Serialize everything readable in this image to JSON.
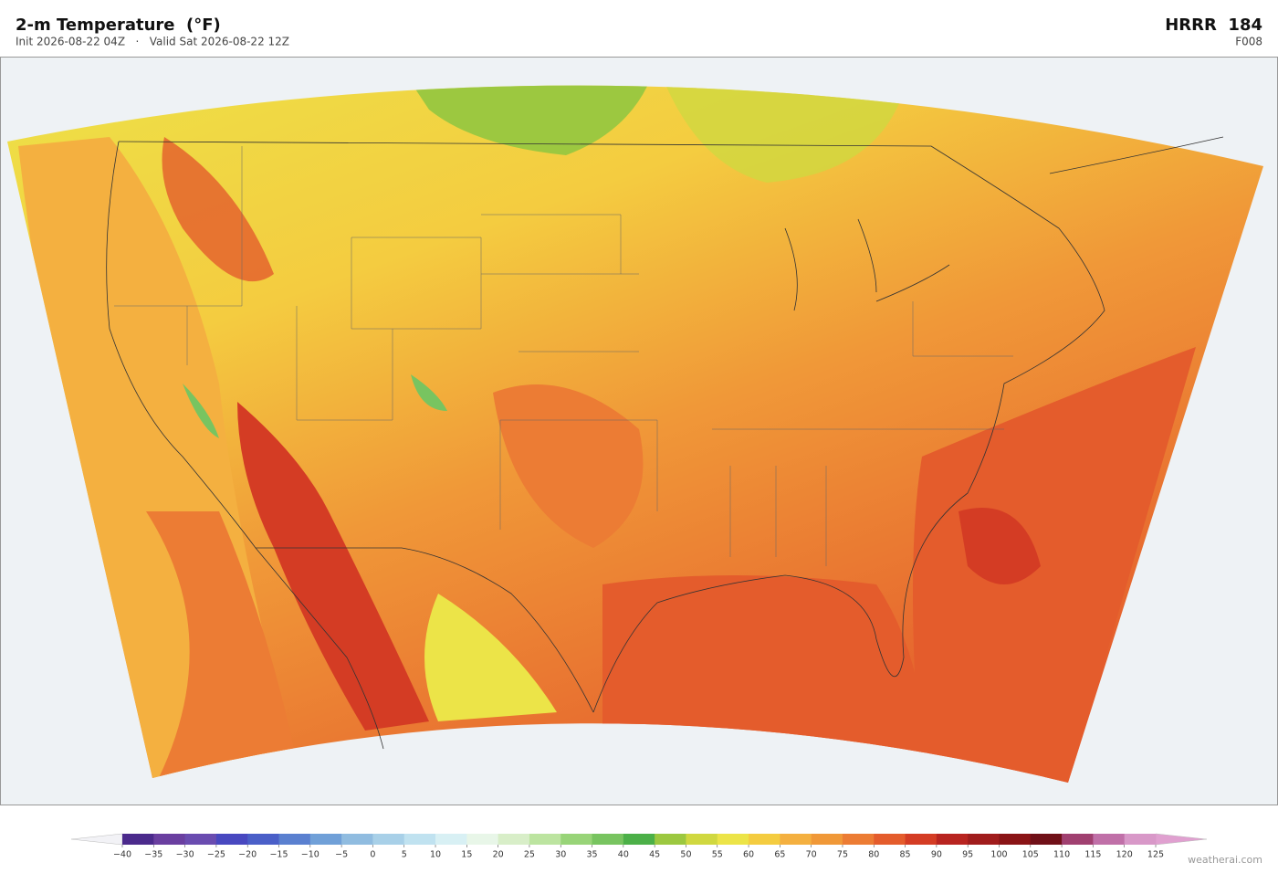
{
  "header": {
    "title": "2-m Temperature  (°F)",
    "subtitle": "Init 2026-08-22 04Z   ·   Valid Sat 2026-08-22 12Z",
    "model": "HRRR  184",
    "forecast_hour": "F008"
  },
  "colorbar": {
    "labels": [
      "−40",
      "−35",
      "−30",
      "−25",
      "−20",
      "−15",
      "−10",
      "−5",
      "0",
      "5",
      "10",
      "15",
      "20",
      "25",
      "30",
      "35",
      "40",
      "45",
      "50",
      "55",
      "60",
      "65",
      "70",
      "75",
      "80",
      "85",
      "90",
      "95",
      "100",
      "105",
      "110",
      "115",
      "120",
      "125"
    ],
    "colors": [
      "#4b2a8c",
      "#6a3fa0",
      "#6a4cb0",
      "#4848c0",
      "#4a5fc8",
      "#5a80d0",
      "#70a0d8",
      "#90bce0",
      "#a8d0e8",
      "#c0e2f0",
      "#d8f0f4",
      "#e8f6e8",
      "#d8eec8",
      "#bce4a0",
      "#98d478",
      "#78c460",
      "#4cb048",
      "#9cc840",
      "#d0d840",
      "#ece448",
      "#f4cc40",
      "#f4b040",
      "#f09838",
      "#ec7c34",
      "#e45c2c",
      "#d43c24",
      "#b82420",
      "#a01c1c",
      "#8a1416",
      "#701018",
      "#a04070",
      "#c070a8",
      "#d898c8"
    ],
    "under_color": "#f2f2f6",
    "over_color": "#e0a0d0"
  },
  "credit": "weatherai.com"
}
